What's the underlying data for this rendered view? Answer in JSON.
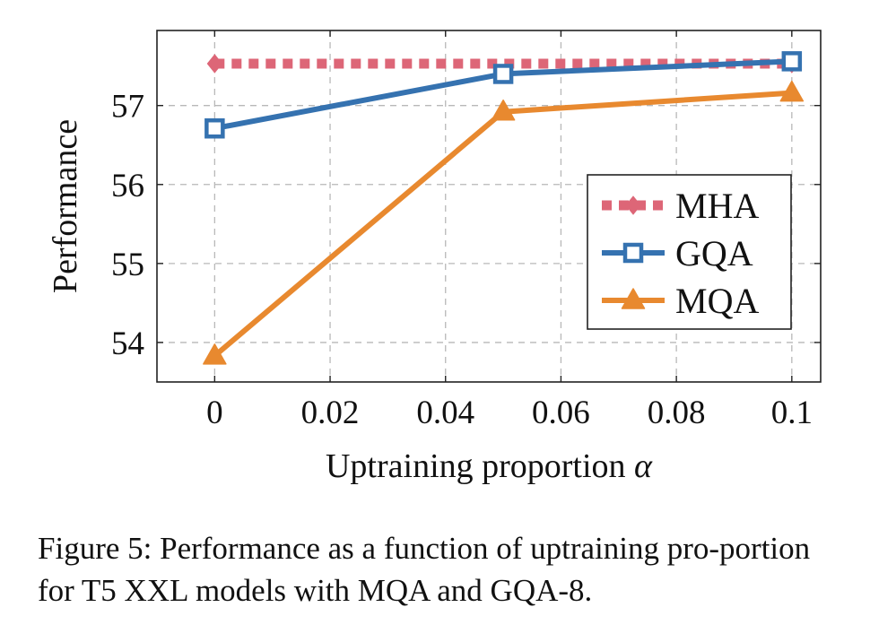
{
  "chart_data": {
    "type": "line",
    "xlabel": "Uptraining proportion",
    "xlabel_symbol": "α",
    "ylabel": "Performance",
    "xlim": [
      -0.01,
      0.105
    ],
    "ylim": [
      53.5,
      57.95
    ],
    "x_ticks": [
      0,
      0.02,
      0.04,
      0.06,
      0.08,
      0.1
    ],
    "x_tick_labels": [
      "0",
      "0.02",
      "0.04",
      "0.06",
      "0.08",
      "0.1"
    ],
    "y_ticks": [
      54,
      55,
      56,
      57
    ],
    "y_tick_labels": [
      "54",
      "55",
      "56",
      "57"
    ],
    "grid": true,
    "legend_position": "right",
    "series": [
      {
        "name": "MHA",
        "color": "#dd6677",
        "marker": "diamond",
        "style": "dotted",
        "x": [
          0,
          0.1
        ],
        "y": [
          57.53,
          57.53
        ]
      },
      {
        "name": "GQA",
        "color": "#3572b0",
        "marker": "square",
        "style": "solid",
        "x": [
          0,
          0.05,
          0.1
        ],
        "y": [
          56.71,
          57.4,
          57.56
        ]
      },
      {
        "name": "MQA",
        "color": "#e8892f",
        "marker": "triangle",
        "style": "solid",
        "x": [
          0,
          0.05,
          0.1
        ],
        "y": [
          53.83,
          56.92,
          57.16
        ]
      }
    ]
  },
  "caption": "Figure 5: Performance as a function of uptraining pro-portion for T5 XXL models with MQA and GQA-8."
}
